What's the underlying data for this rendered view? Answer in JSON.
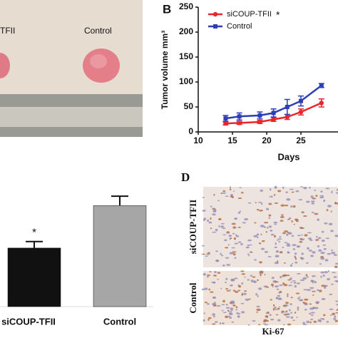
{
  "panel_a": {
    "labels": [
      "TFII",
      "Control"
    ]
  },
  "chart_data": [
    {
      "type": "line",
      "panel_label": "B",
      "y_label": "Tumor volume mm³",
      "x_label": "Days",
      "x": [
        14,
        16,
        19,
        21,
        23,
        25,
        28
      ],
      "series": [
        {
          "name": "siCOUP-TFII",
          "color": "#e8262b",
          "values": [
            17,
            18,
            20,
            25,
            30,
            40,
            58
          ],
          "errors": [
            3,
            3,
            3,
            4,
            5,
            6,
            8
          ]
        },
        {
          "name": "Control",
          "color": "#2e3fb5",
          "values": [
            27,
            31,
            33,
            38,
            50,
            62,
            93
          ],
          "errors": [
            6,
            7,
            7,
            8,
            15,
            10,
            4
          ]
        }
      ],
      "legend_annotation": "*",
      "xlim": [
        10,
        30
      ],
      "ylim": [
        0,
        250
      ],
      "xticks": [
        10,
        15,
        20,
        25
      ],
      "yticks": [
        0,
        50,
        100,
        150,
        200,
        250
      ]
    },
    {
      "type": "bar",
      "categories": [
        "siCOUP-TFII",
        "Control"
      ],
      "values": [
        0.58,
        1.0
      ],
      "errors": [
        0.064,
        0.093
      ],
      "colors": [
        "#111111",
        "#a6a6a6"
      ],
      "ylim": [
        0,
        1.2
      ],
      "annotation": "*"
    }
  ],
  "panel_d": {
    "label": "D",
    "rows": [
      "siCOUP-TFII",
      "Control"
    ],
    "caption": "Ki-67"
  }
}
